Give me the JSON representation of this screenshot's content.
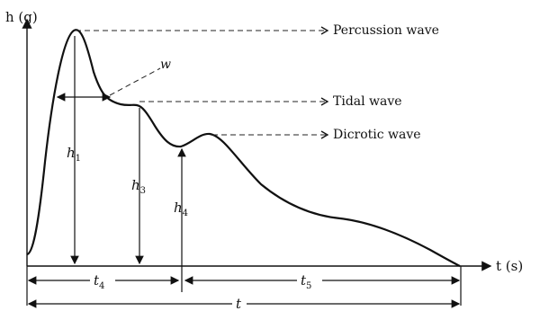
{
  "axes": {
    "y_label": "h (g)",
    "x_label": "t (s)"
  },
  "waves": {
    "percussion": "Percussion wave",
    "tidal": "Tidal wave",
    "dicrotic": "Dicrotic wave"
  },
  "annotations": {
    "w": "w",
    "h1": "h",
    "h1_sub": "1",
    "h3": "h",
    "h3_sub": "3",
    "h4": "h",
    "h4_sub": "4",
    "t4": "t",
    "t4_sub": "4",
    "t5": "t",
    "t5_sub": "5",
    "t": "t"
  }
}
